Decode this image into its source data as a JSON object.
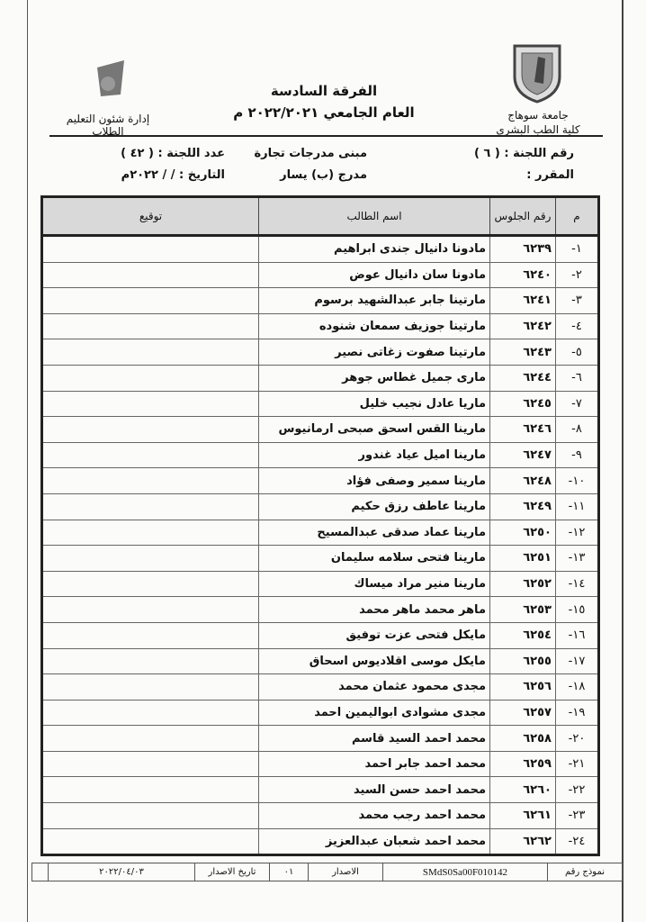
{
  "header": {
    "left_logo_text": "جامعة سوهاج كلية الطب",
    "left_caption": "إدارة شئون التعليم الطلاب",
    "right_caption_1": "جامعة سوهاج",
    "right_caption_2": "كلية الطب البشرى",
    "title_1": "الفرقة السادسة",
    "title_2": "العام الجامعي ٢٠٢٢/٢٠٢١ م"
  },
  "info": {
    "committee_no": "رقم اللجنة : ( ٦ )",
    "building": "مبنى مدرجات تجارة",
    "committee_count": "عدد اللجنة : ( ٤٢ )",
    "course": "المقرر :",
    "hall": "مدرج (ب) يسار",
    "date": "التاريخ :   /   / ٢٠٢٢م"
  },
  "table": {
    "headers": {
      "index": "م",
      "seat": "رقم الجلوس",
      "name": "اسم الطالب",
      "signature": "توقيع"
    },
    "rows": [
      {
        "index": "١-",
        "seat": "٦٢٣٩",
        "name": "مادونا دانيال جندى ابراهيم"
      },
      {
        "index": "٢-",
        "seat": "٦٢٤٠",
        "name": "مادونا سان دانيال عوض"
      },
      {
        "index": "٣-",
        "seat": "٦٢٤١",
        "name": "مارتينا جابر عبدالشهيد برسوم"
      },
      {
        "index": "٤-",
        "seat": "٦٢٤٢",
        "name": "مارتينا جوزيف سمعان شنوده"
      },
      {
        "index": "٥-",
        "seat": "٦٢٤٣",
        "name": "مارتينا صفوت زغاتى نصير"
      },
      {
        "index": "٦-",
        "seat": "٦٢٤٤",
        "name": "مارى جميل غطاس جوهر"
      },
      {
        "index": "٧-",
        "seat": "٦٢٤٥",
        "name": "ماريا عادل نجيب خليل"
      },
      {
        "index": "٨-",
        "seat": "٦٢٤٦",
        "name": "مارينا القس اسحق صبحى ارمانيوس"
      },
      {
        "index": "٩-",
        "seat": "٦٢٤٧",
        "name": "مارينا اميل عياد غندور"
      },
      {
        "index": "١٠-",
        "seat": "٦٢٤٨",
        "name": "مارينا سمير وصفى فؤاد"
      },
      {
        "index": "١١-",
        "seat": "٦٢٤٩",
        "name": "مارينا عاطف رزق حكيم"
      },
      {
        "index": "١٢-",
        "seat": "٦٢٥٠",
        "name": "مارينا عماد صدقى عبدالمسيح"
      },
      {
        "index": "١٣-",
        "seat": "٦٢٥١",
        "name": "مارينا فتحى سلامه سليمان"
      },
      {
        "index": "١٤-",
        "seat": "٦٢٥٢",
        "name": "مارينا منير مراد ميساك"
      },
      {
        "index": "١٥-",
        "seat": "٦٢٥٣",
        "name": "ماهر محمد ماهر محمد"
      },
      {
        "index": "١٦-",
        "seat": "٦٢٥٤",
        "name": "مايكل فتحى عزت توفيق"
      },
      {
        "index": "١٧-",
        "seat": "٦٢٥٥",
        "name": "مايكل موسى اقلاديوس اسحاق"
      },
      {
        "index": "١٨-",
        "seat": "٦٢٥٦",
        "name": "مجدى محمود عثمان محمد"
      },
      {
        "index": "١٩-",
        "seat": "٦٢٥٧",
        "name": "مجدى مشوادى ابواليمين احمد"
      },
      {
        "index": "٢٠-",
        "seat": "٦٢٥٨",
        "name": "محمد احمد السيد قاسم"
      },
      {
        "index": "٢١-",
        "seat": "٦٢٥٩",
        "name": "محمد احمد جابر احمد"
      },
      {
        "index": "٢٢-",
        "seat": "٦٢٦٠",
        "name": "محمد احمد حسن السيد"
      },
      {
        "index": "٢٣-",
        "seat": "٦٢٦١",
        "name": "محمد احمد رجب محمد"
      },
      {
        "index": "٢٤-",
        "seat": "٦٢٦٢",
        "name": "محمد احمد شعبان عبدالعزيز"
      }
    ]
  },
  "footer": {
    "form_label": "نموذج رقم",
    "form_no": "SMdS0Sa00F010142",
    "edition_label": "الاصدار",
    "edition": "٠١",
    "issue_date_label": "تاريخ الاصدار",
    "issue_date": "٢٠٢٢/٠٤/٠٣"
  }
}
